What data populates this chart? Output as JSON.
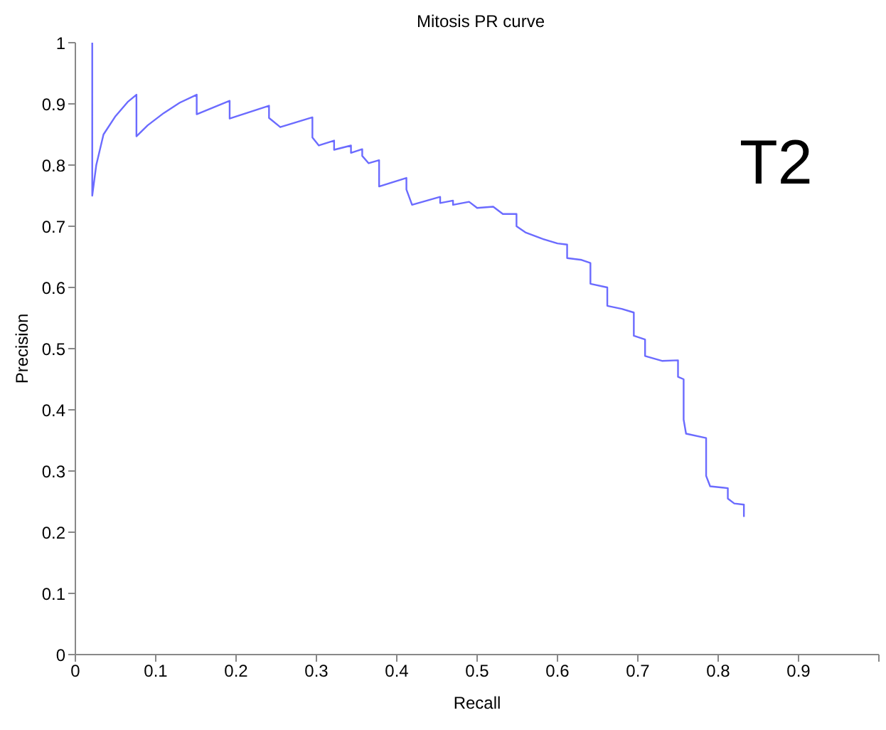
{
  "chart_data": {
    "type": "line",
    "title": "Mitosis PR curve",
    "xlabel": "Recall",
    "ylabel": "Precision",
    "annotations": [
      "T2"
    ],
    "xlim": [
      0,
      1
    ],
    "xticks": [
      0,
      0.1,
      0.2,
      0.3,
      0.4,
      0.5,
      0.6,
      0.7,
      0.8,
      0.9,
      {
        "value": 1,
        "label": null
      }
    ],
    "ylim": [
      0,
      1
    ],
    "yticks": [
      0,
      0.1,
      0.2,
      0.3,
      0.4,
      0.5,
      0.6,
      0.7,
      0.8,
      0.9,
      1
    ],
    "marker": "none",
    "line_style": "solid",
    "series": [
      {
        "color": "#6b6bff",
        "x": [
          0.021,
          0.021,
          0.026,
          0.035,
          0.05,
          0.065,
          0.076,
          0.076,
          0.09,
          0.11,
          0.13,
          0.151,
          0.151,
          0.192,
          0.192,
          0.241,
          0.241,
          0.255,
          0.295,
          0.295,
          0.303,
          0.322,
          0.322,
          0.343,
          0.343,
          0.357,
          0.357,
          0.365,
          0.378,
          0.378,
          0.412,
          0.412,
          0.419,
          0.454,
          0.454,
          0.47,
          0.47,
          0.49,
          0.5,
          0.52,
          0.532,
          0.549,
          0.549,
          0.56,
          0.58,
          0.6,
          0.612,
          0.612,
          0.63,
          0.641,
          0.641,
          0.662,
          0.662,
          0.68,
          0.695,
          0.695,
          0.709,
          0.709,
          0.73,
          0.75,
          0.75,
          0.757,
          0.757,
          0.76,
          0.785,
          0.785,
          0.79,
          0.812,
          0.812,
          0.82,
          0.832,
          0.832
        ],
        "values": [
          1,
          0.75,
          0.8,
          0.85,
          0.88,
          0.903,
          0.915,
          0.847,
          0.865,
          0.885,
          0.902,
          0.915,
          0.883,
          0.905,
          0.876,
          0.897,
          0.877,
          0.862,
          0.878,
          0.845,
          0.832,
          0.84,
          0.825,
          0.832,
          0.82,
          0.826,
          0.815,
          0.803,
          0.808,
          0.765,
          0.779,
          0.76,
          0.735,
          0.748,
          0.738,
          0.742,
          0.735,
          0.74,
          0.73,
          0.732,
          0.72,
          0.72,
          0.7,
          0.69,
          0.68,
          0.672,
          0.67,
          0.648,
          0.645,
          0.64,
          0.606,
          0.6,
          0.57,
          0.565,
          0.559,
          0.521,
          0.515,
          0.488,
          0.48,
          0.481,
          0.454,
          0.45,
          0.384,
          0.361,
          0.354,
          0.292,
          0.275,
          0.272,
          0.255,
          0.247,
          0.245,
          0.225
        ]
      }
    ]
  }
}
